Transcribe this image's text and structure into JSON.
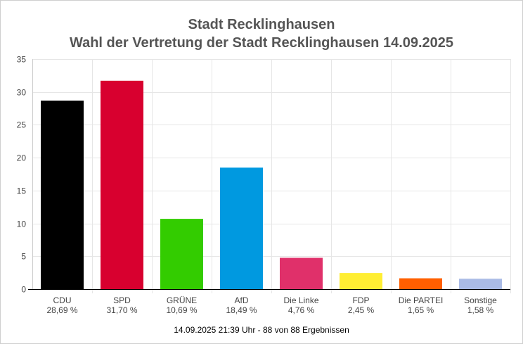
{
  "header": {
    "title_line1": "Stadt Recklinghausen",
    "title_line2": "Wahl der Vertretung der Stadt Recklinghausen 14.09.2025"
  },
  "footer": {
    "status": "14.09.2025 21:39 Uhr - 88 von 88 Ergebnissen"
  },
  "chart_data": {
    "type": "bar",
    "title": "Stadt Recklinghausen",
    "subtitle": "Wahl der Vertretung der Stadt Recklinghausen 14.09.2025",
    "categories": [
      "CDU",
      "SPD",
      "GRÜNE",
      "AfD",
      "Die Linke",
      "FDP",
      "Die PARTEI",
      "Sonstige"
    ],
    "values": [
      28.69,
      31.7,
      10.69,
      18.49,
      4.76,
      2.45,
      1.65,
      1.58
    ],
    "value_labels": [
      "28,69 %",
      "31,70 %",
      "10,69 %",
      "18,49 %",
      "4,76 %",
      "2,45 %",
      "1,65 %",
      "1,58 %"
    ],
    "colors": [
      "#000000",
      "#d8002f",
      "#33cc00",
      "#0099e0",
      "#e0306a",
      "#ffee33",
      "#ff5f00",
      "#aabbe6"
    ],
    "yticks": [
      "0",
      "5",
      "10",
      "15",
      "20",
      "25",
      "30",
      "35"
    ],
    "ylim": [
      0,
      35
    ],
    "xlabel": "",
    "ylabel": "",
    "grid": true
  }
}
